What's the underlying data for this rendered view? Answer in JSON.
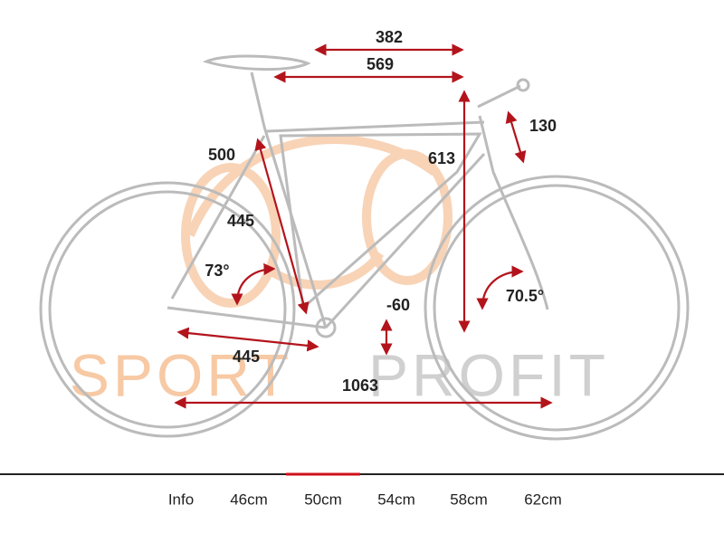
{
  "watermark": [
    "SPORT",
    "PROFIT"
  ],
  "measurements": [
    {
      "label": "382"
    },
    {
      "label": "569"
    },
    {
      "label": "613"
    },
    {
      "label": "130"
    },
    {
      "label": "500"
    },
    {
      "label": "445"
    },
    {
      "label": "73°"
    },
    {
      "label": "70.5°"
    },
    {
      "label": "-60"
    },
    {
      "label": "445"
    },
    {
      "label": "1063"
    }
  ],
  "tabs": [
    {
      "label": "Info",
      "active": false
    },
    {
      "label": "46cm",
      "active": false
    },
    {
      "label": "50cm",
      "active": true
    },
    {
      "label": "54cm",
      "active": false
    },
    {
      "label": "58cm",
      "active": false
    },
    {
      "label": "62cm",
      "active": false
    }
  ]
}
